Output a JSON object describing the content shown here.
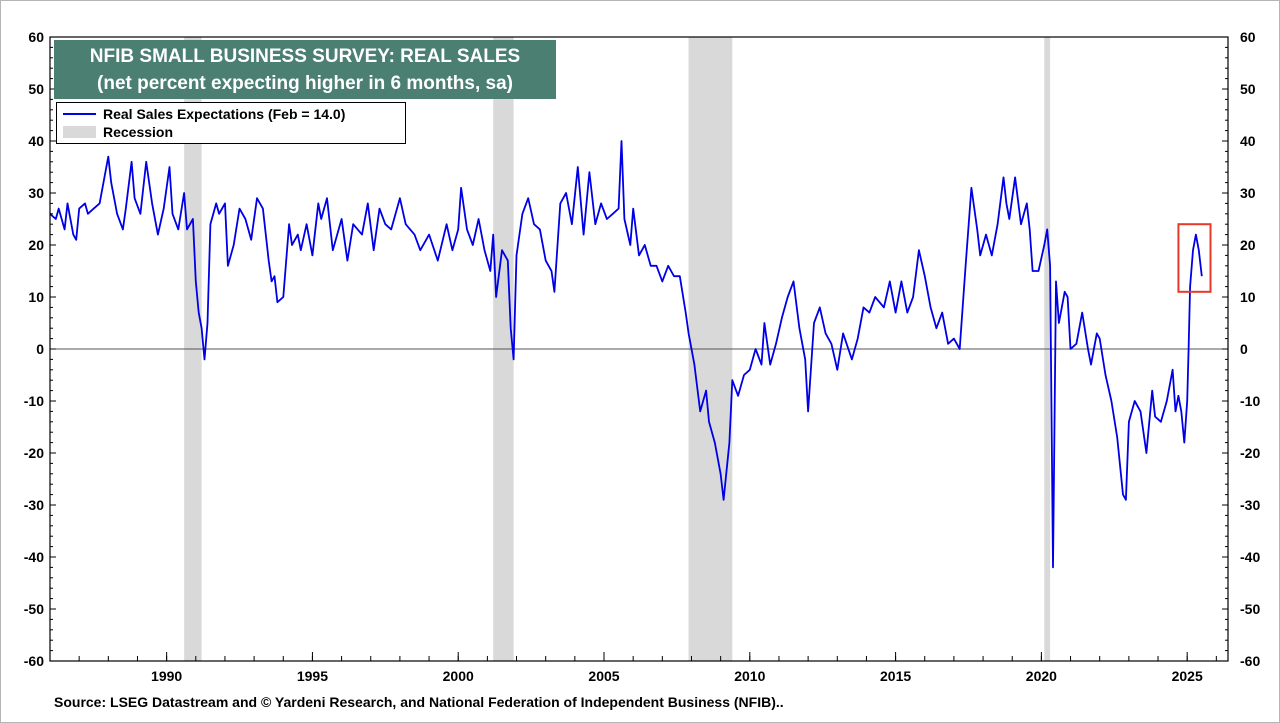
{
  "chart_data": {
    "type": "line",
    "title": "NFIB SMALL BUSINESS SURVEY: REAL SALES",
    "subtitle": "(net percent expecting higher in 6 months, sa)",
    "source": "Source: LSEG Datastream and © Yardeni Research, and National Federation of Independent Business (NFIB)..",
    "xlim": [
      1986.0,
      2026.4
    ],
    "ylim": [
      -60,
      60
    ],
    "y_ticks": [
      60,
      50,
      40,
      30,
      20,
      10,
      0,
      -10,
      -20,
      -30,
      -40,
      -50,
      -60
    ],
    "x_ticks": [
      1990,
      1995,
      2000,
      2005,
      2010,
      2015,
      2020,
      2025
    ],
    "grid": false,
    "zero_line": true,
    "legend_position": "top-left",
    "highlight_box": {
      "x_range": [
        2024.7,
        2025.8
      ],
      "y_range": [
        11,
        24
      ],
      "color": "#e53a2a"
    },
    "colors": {
      "line": "#0000e6",
      "recession": "#d9d9d9",
      "title_bg": "#4a7f71",
      "highlight": "#e53a2a"
    },
    "recessions": [
      {
        "label": "Recession",
        "start": 1990.6,
        "end": 1991.2
      },
      {
        "label": "Recession",
        "start": 2001.2,
        "end": 2001.9
      },
      {
        "label": "Recession",
        "start": 2007.9,
        "end": 2009.4
      },
      {
        "label": "Recession",
        "start": 2020.1,
        "end": 2020.3
      }
    ],
    "series": [
      {
        "name": "Real Sales Expectations (Feb = 14.0)",
        "points": [
          [
            1986.0,
            26
          ],
          [
            1986.2,
            25
          ],
          [
            1986.3,
            27
          ],
          [
            1986.5,
            23
          ],
          [
            1986.6,
            28
          ],
          [
            1986.8,
            22
          ],
          [
            1986.9,
            21
          ],
          [
            1987.0,
            27
          ],
          [
            1987.2,
            28
          ],
          [
            1987.3,
            26
          ],
          [
            1987.5,
            27
          ],
          [
            1987.7,
            28
          ],
          [
            1987.9,
            34
          ],
          [
            1988.0,
            37
          ],
          [
            1988.1,
            32
          ],
          [
            1988.3,
            26
          ],
          [
            1988.5,
            23
          ],
          [
            1988.6,
            27
          ],
          [
            1988.8,
            36
          ],
          [
            1988.9,
            29
          ],
          [
            1989.1,
            26
          ],
          [
            1989.3,
            36
          ],
          [
            1989.5,
            28
          ],
          [
            1989.7,
            22
          ],
          [
            1989.9,
            27
          ],
          [
            1990.1,
            35
          ],
          [
            1990.2,
            26
          ],
          [
            1990.4,
            23
          ],
          [
            1990.6,
            30
          ],
          [
            1990.7,
            23
          ],
          [
            1990.9,
            25
          ],
          [
            1991.0,
            13
          ],
          [
            1991.1,
            7
          ],
          [
            1991.2,
            4
          ],
          [
            1991.3,
            -2
          ],
          [
            1991.4,
            5
          ],
          [
            1991.5,
            24
          ],
          [
            1991.7,
            28
          ],
          [
            1991.8,
            26
          ],
          [
            1992.0,
            28
          ],
          [
            1992.1,
            16
          ],
          [
            1992.3,
            20
          ],
          [
            1992.5,
            27
          ],
          [
            1992.7,
            25
          ],
          [
            1992.9,
            21
          ],
          [
            1993.1,
            29
          ],
          [
            1993.3,
            27
          ],
          [
            1993.5,
            17
          ],
          [
            1993.6,
            13
          ],
          [
            1993.7,
            14
          ],
          [
            1993.8,
            9
          ],
          [
            1994.0,
            10
          ],
          [
            1994.2,
            24
          ],
          [
            1994.3,
            20
          ],
          [
            1994.5,
            22
          ],
          [
            1994.6,
            19
          ],
          [
            1994.8,
            24
          ],
          [
            1995.0,
            18
          ],
          [
            1995.2,
            28
          ],
          [
            1995.3,
            25
          ],
          [
            1995.5,
            29
          ],
          [
            1995.7,
            19
          ],
          [
            1996.0,
            25
          ],
          [
            1996.2,
            17
          ],
          [
            1996.4,
            24
          ],
          [
            1996.7,
            22
          ],
          [
            1996.9,
            28
          ],
          [
            1997.1,
            19
          ],
          [
            1997.3,
            27
          ],
          [
            1997.5,
            24
          ],
          [
            1997.7,
            23
          ],
          [
            1998.0,
            29
          ],
          [
            1998.2,
            24
          ],
          [
            1998.5,
            22
          ],
          [
            1998.7,
            19
          ],
          [
            1999.0,
            22
          ],
          [
            1999.3,
            17
          ],
          [
            1999.6,
            24
          ],
          [
            1999.8,
            19
          ],
          [
            2000.0,
            23
          ],
          [
            2000.1,
            31
          ],
          [
            2000.3,
            23
          ],
          [
            2000.5,
            20
          ],
          [
            2000.7,
            25
          ],
          [
            2000.9,
            19
          ],
          [
            2001.1,
            15
          ],
          [
            2001.2,
            22
          ],
          [
            2001.3,
            10
          ],
          [
            2001.5,
            19
          ],
          [
            2001.7,
            17
          ],
          [
            2001.8,
            4
          ],
          [
            2001.9,
            -2
          ],
          [
            2002.0,
            18
          ],
          [
            2002.2,
            26
          ],
          [
            2002.4,
            29
          ],
          [
            2002.6,
            24
          ],
          [
            2002.8,
            23
          ],
          [
            2003.0,
            17
          ],
          [
            2003.2,
            15
          ],
          [
            2003.3,
            11
          ],
          [
            2003.5,
            28
          ],
          [
            2003.7,
            30
          ],
          [
            2003.9,
            24
          ],
          [
            2004.1,
            35
          ],
          [
            2004.3,
            22
          ],
          [
            2004.5,
            34
          ],
          [
            2004.7,
            24
          ],
          [
            2004.9,
            28
          ],
          [
            2005.1,
            25
          ],
          [
            2005.3,
            26
          ],
          [
            2005.5,
            27
          ],
          [
            2005.6,
            40
          ],
          [
            2005.7,
            25
          ],
          [
            2005.9,
            20
          ],
          [
            2006.0,
            27
          ],
          [
            2006.2,
            18
          ],
          [
            2006.4,
            20
          ],
          [
            2006.6,
            16
          ],
          [
            2006.8,
            16
          ],
          [
            2007.0,
            13
          ],
          [
            2007.2,
            16
          ],
          [
            2007.4,
            14
          ],
          [
            2007.6,
            14
          ],
          [
            2007.8,
            7
          ],
          [
            2007.9,
            3
          ],
          [
            2008.1,
            -3
          ],
          [
            2008.3,
            -12
          ],
          [
            2008.5,
            -8
          ],
          [
            2008.6,
            -14
          ],
          [
            2008.8,
            -18
          ],
          [
            2009.0,
            -24
          ],
          [
            2009.1,
            -29
          ],
          [
            2009.3,
            -18
          ],
          [
            2009.4,
            -6
          ],
          [
            2009.6,
            -9
          ],
          [
            2009.8,
            -5
          ],
          [
            2010.0,
            -4
          ],
          [
            2010.2,
            0
          ],
          [
            2010.4,
            -3
          ],
          [
            2010.5,
            5
          ],
          [
            2010.7,
            -3
          ],
          [
            2010.9,
            1
          ],
          [
            2011.1,
            6
          ],
          [
            2011.3,
            10
          ],
          [
            2011.5,
            13
          ],
          [
            2011.7,
            4
          ],
          [
            2011.9,
            -2
          ],
          [
            2012.0,
            -12
          ],
          [
            2012.2,
            5
          ],
          [
            2012.4,
            8
          ],
          [
            2012.6,
            3
          ],
          [
            2012.8,
            1
          ],
          [
            2013.0,
            -4
          ],
          [
            2013.2,
            3
          ],
          [
            2013.5,
            -2
          ],
          [
            2013.7,
            2
          ],
          [
            2013.9,
            8
          ],
          [
            2014.1,
            7
          ],
          [
            2014.3,
            10
          ],
          [
            2014.6,
            8
          ],
          [
            2014.8,
            13
          ],
          [
            2015.0,
            7
          ],
          [
            2015.2,
            13
          ],
          [
            2015.4,
            7
          ],
          [
            2015.6,
            10
          ],
          [
            2015.8,
            19
          ],
          [
            2016.0,
            14
          ],
          [
            2016.2,
            8
          ],
          [
            2016.4,
            4
          ],
          [
            2016.6,
            7
          ],
          [
            2016.8,
            1
          ],
          [
            2017.0,
            2
          ],
          [
            2017.2,
            0
          ],
          [
            2017.4,
            16
          ],
          [
            2017.6,
            31
          ],
          [
            2017.8,
            23
          ],
          [
            2017.9,
            18
          ],
          [
            2018.1,
            22
          ],
          [
            2018.3,
            18
          ],
          [
            2018.5,
            24
          ],
          [
            2018.7,
            33
          ],
          [
            2018.8,
            28
          ],
          [
            2018.9,
            25
          ],
          [
            2019.1,
            33
          ],
          [
            2019.3,
            24
          ],
          [
            2019.5,
            28
          ],
          [
            2019.6,
            23
          ],
          [
            2019.7,
            15
          ],
          [
            2019.9,
            15
          ],
          [
            2020.1,
            20
          ],
          [
            2020.2,
            23
          ],
          [
            2020.3,
            16
          ],
          [
            2020.4,
            -42
          ],
          [
            2020.5,
            13
          ],
          [
            2020.6,
            5
          ],
          [
            2020.8,
            11
          ],
          [
            2020.9,
            10
          ],
          [
            2021.0,
            0
          ],
          [
            2021.2,
            1
          ],
          [
            2021.4,
            7
          ],
          [
            2021.6,
            0
          ],
          [
            2021.7,
            -3
          ],
          [
            2021.9,
            3
          ],
          [
            2022.0,
            2
          ],
          [
            2022.2,
            -5
          ],
          [
            2022.4,
            -10
          ],
          [
            2022.6,
            -17
          ],
          [
            2022.8,
            -28
          ],
          [
            2022.9,
            -29
          ],
          [
            2023.0,
            -14
          ],
          [
            2023.2,
            -10
          ],
          [
            2023.4,
            -12
          ],
          [
            2023.6,
            -20
          ],
          [
            2023.8,
            -8
          ],
          [
            2023.9,
            -13
          ],
          [
            2024.1,
            -14
          ],
          [
            2024.3,
            -10
          ],
          [
            2024.5,
            -4
          ],
          [
            2024.6,
            -12
          ],
          [
            2024.7,
            -9
          ],
          [
            2024.8,
            -12
          ],
          [
            2024.9,
            -18
          ],
          [
            2025.0,
            -10
          ],
          [
            2025.05,
            0
          ],
          [
            2025.1,
            12
          ],
          [
            2025.2,
            19
          ],
          [
            2025.3,
            22
          ],
          [
            2025.4,
            19
          ],
          [
            2025.5,
            14
          ]
        ]
      }
    ]
  },
  "legend": {
    "line_label": "Real Sales Expectations (Feb = 14.0)",
    "recession_label": "Recession"
  }
}
